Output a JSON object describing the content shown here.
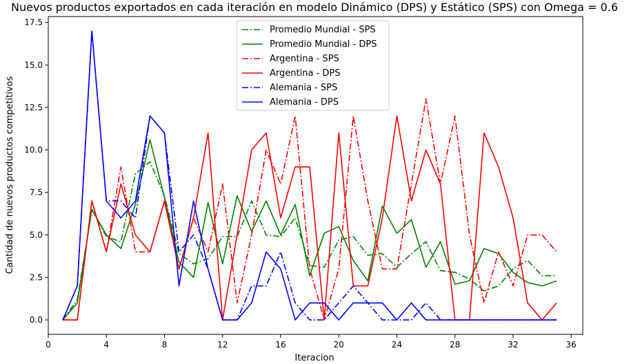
{
  "chart_data": {
    "type": "line",
    "title": "Nuevos productos exportados en cada iteración en modelo Dinámico (DPS) y Estático (SPS) con Omega = 0.6",
    "xlabel": "Iteracion",
    "ylabel": "Cantidad de nuevos productos competitivos",
    "xlim": [
      0,
      36.8
    ],
    "ylim": [
      -0.85,
      17.85
    ],
    "xticks": [
      0,
      4,
      8,
      12,
      16,
      20,
      24,
      28,
      32,
      36
    ],
    "yticks": [
      0.0,
      2.5,
      5.0,
      7.5,
      10.0,
      12.5,
      15.0,
      17.5
    ],
    "xtick_labels": [
      "0",
      "4",
      "8",
      "12",
      "16",
      "20",
      "24",
      "28",
      "32",
      "36"
    ],
    "ytick_labels": [
      "0.0",
      "2.5",
      "5.0",
      "7.5",
      "10.0",
      "12.5",
      "15.0",
      "17.5"
    ],
    "grid": false,
    "legend": "top-center",
    "x": [
      1,
      2,
      3,
      4,
      5,
      6,
      7,
      8,
      9,
      10,
      11,
      12,
      13,
      14,
      15,
      16,
      17,
      18,
      19,
      20,
      21,
      22,
      23,
      24,
      25,
      26,
      27,
      28,
      29,
      30,
      31,
      32,
      33,
      34,
      35
    ],
    "series": [
      {
        "name": "Promedio Mundial - SPS",
        "color": "#008000",
        "dash": "dashdot",
        "values": [
          0,
          1.2,
          6.5,
          4.9,
          4.6,
          8.6,
          9.3,
          7.3,
          3.9,
          3.3,
          3.6,
          4.9,
          4.9,
          7.0,
          5.0,
          4.9,
          6.0,
          3.2,
          3.1,
          4.7,
          4.9,
          3.8,
          3.9,
          3.1,
          3.9,
          4.6,
          2.9,
          2.8,
          2.4,
          1.7,
          2.0,
          3.0,
          3.5,
          2.6,
          2.6
        ]
      },
      {
        "name": "Promedio Mundial - DPS",
        "color": "#008000",
        "dash": "solid",
        "values": [
          0,
          1.0,
          6.5,
          5.0,
          4.2,
          6.8,
          10.6,
          7.2,
          3.4,
          2.5,
          6.9,
          3.3,
          7.3,
          5.2,
          7.0,
          5.0,
          6.8,
          2.6,
          5.1,
          5.5,
          3.5,
          2.3,
          6.7,
          5.1,
          5.9,
          3.1,
          4.6,
          2.1,
          2.3,
          4.2,
          3.9,
          2.8,
          2.2,
          2.0,
          2.3
        ]
      },
      {
        "name": "Argentina - SPS",
        "color": "#ff0000",
        "dash": "dashdot",
        "values": [
          0,
          0,
          7,
          4,
          9,
          4,
          4,
          7,
          3,
          6,
          4,
          8,
          1,
          5,
          10,
          8,
          12,
          3,
          0,
          3,
          12,
          7,
          3,
          3,
          8,
          13,
          8,
          12,
          5,
          1,
          4,
          2,
          5,
          5,
          4
        ]
      },
      {
        "name": "Argentina - DPS",
        "color": "#ff0000",
        "dash": "solid",
        "values": [
          0,
          0,
          7,
          4,
          8,
          5,
          4,
          7,
          3,
          6,
          11,
          0,
          5,
          10,
          11,
          6,
          9,
          9,
          0,
          11,
          2,
          2,
          6,
          12,
          7,
          10,
          8,
          0,
          0,
          11,
          9,
          6,
          1,
          0,
          1
        ]
      },
      {
        "name": "Alemania - SPS",
        "color": "#0000ff",
        "dash": "dashdot",
        "values": [
          0,
          2,
          17,
          7,
          7,
          6,
          12,
          11,
          4,
          5,
          3,
          0,
          0,
          2,
          2,
          4,
          1,
          0,
          0,
          1,
          2,
          1,
          0,
          0,
          0,
          1,
          0,
          0,
          0,
          0,
          0,
          0,
          0,
          0,
          0
        ]
      },
      {
        "name": "Alemania - DPS",
        "color": "#0000ff",
        "dash": "solid",
        "values": [
          0,
          2,
          17,
          7,
          6,
          7,
          12,
          11,
          2,
          7,
          3,
          0,
          0,
          1,
          4,
          3,
          0,
          1,
          1,
          0,
          1,
          1,
          1,
          0,
          1,
          0,
          0,
          0,
          0,
          0,
          0,
          0,
          0,
          0,
          0
        ]
      }
    ]
  }
}
